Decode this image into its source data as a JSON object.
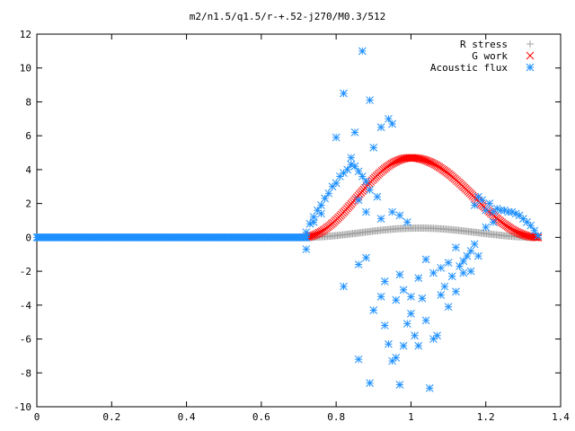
{
  "chart_data": {
    "type": "scatter",
    "title": "m2/n1.5/q1.5/r-+.52-j270/M0.3/512",
    "xlabel": "",
    "ylabel": "",
    "xlim": [
      0,
      1.4
    ],
    "ylim": [
      -10,
      12
    ],
    "x_ticks": [
      "0",
      "0.2",
      "0.4",
      "0.6",
      "0.8",
      "1",
      "1.2",
      "1.4"
    ],
    "y_ticks": [
      "-10",
      "-8",
      "-6",
      "-4",
      "-2",
      "0",
      "2",
      "4",
      "6",
      "8",
      "10",
      "12"
    ],
    "grid": false,
    "legend_position": "top-right",
    "series": [
      {
        "name": "R stress",
        "marker": "plus",
        "color": "#a0a0a0",
        "profile": "bump",
        "x_range": [
          0.71,
          1.34
        ],
        "amplitude": 0.55,
        "peak_x": 1.02,
        "n_points": 170
      },
      {
        "name": "G work",
        "marker": "cross",
        "color": "#ff0000",
        "profile": "bump",
        "x_range": [
          0.71,
          1.34
        ],
        "amplitude": 4.7,
        "peak_x": 1.0,
        "n_points": 170
      },
      {
        "name": "Acoustic flux",
        "marker": "star",
        "color": "#1e90ff",
        "baseline_x_range": [
          0.0,
          0.72
        ],
        "baseline_y": 0,
        "baseline_n_points": 260,
        "points": [
          [
            0.72,
            0.3
          ],
          [
            0.73,
            0.8
          ],
          [
            0.74,
            1.2
          ],
          [
            0.75,
            1.6
          ],
          [
            0.76,
            1.9
          ],
          [
            0.77,
            2.3
          ],
          [
            0.78,
            2.6
          ],
          [
            0.79,
            3.0
          ],
          [
            0.8,
            3.2
          ],
          [
            0.81,
            3.6
          ],
          [
            0.82,
            3.8
          ],
          [
            0.83,
            4.0
          ],
          [
            0.84,
            4.3
          ],
          [
            0.85,
            4.2
          ],
          [
            0.86,
            3.9
          ],
          [
            0.87,
            3.6
          ],
          [
            0.88,
            3.3
          ],
          [
            0.72,
            -0.7
          ],
          [
            0.72,
            0.0
          ],
          [
            0.74,
            0.9
          ],
          [
            0.76,
            1.4
          ],
          [
            0.8,
            5.9
          ],
          [
            0.82,
            8.5
          ],
          [
            0.84,
            4.7
          ],
          [
            0.85,
            6.2
          ],
          [
            0.87,
            11.0
          ],
          [
            0.89,
            8.1
          ],
          [
            0.9,
            5.3
          ],
          [
            0.92,
            6.5
          ],
          [
            0.94,
            7.0
          ],
          [
            0.95,
            6.7
          ],
          [
            0.86,
            2.2
          ],
          [
            0.88,
            1.5
          ],
          [
            0.89,
            2.8
          ],
          [
            0.91,
            2.4
          ],
          [
            0.92,
            1.1
          ],
          [
            0.95,
            1.5
          ],
          [
            0.97,
            1.3
          ],
          [
            0.99,
            0.9
          ],
          [
            0.86,
            -1.6
          ],
          [
            0.88,
            -1.2
          ],
          [
            0.82,
            -2.9
          ],
          [
            0.86,
            -7.2
          ],
          [
            0.89,
            -8.6
          ],
          [
            0.9,
            -4.3
          ],
          [
            0.92,
            -3.5
          ],
          [
            0.93,
            -5.2
          ],
          [
            0.94,
            -6.3
          ],
          [
            0.95,
            -7.3
          ],
          [
            0.96,
            -7.1
          ],
          [
            0.97,
            -8.7
          ],
          [
            0.98,
            -6.4
          ],
          [
            0.99,
            -5.1
          ],
          [
            1.0,
            -4.5
          ],
          [
            1.01,
            -5.8
          ],
          [
            1.02,
            -6.4
          ],
          [
            1.03,
            -3.6
          ],
          [
            1.04,
            -4.9
          ],
          [
            1.05,
            -8.9
          ],
          [
            1.06,
            -6.0
          ],
          [
            1.07,
            -5.8
          ],
          [
            1.08,
            -3.4
          ],
          [
            1.09,
            -2.9
          ],
          [
            1.1,
            -4.1
          ],
          [
            1.11,
            -2.3
          ],
          [
            1.12,
            -3.2
          ],
          [
            1.13,
            -1.7
          ],
          [
            1.14,
            -2.1
          ],
          [
            1.15,
            -1.1
          ],
          [
            1.16,
            -0.8
          ],
          [
            1.17,
            -0.4
          ],
          [
            0.93,
            -2.6
          ],
          [
            0.96,
            -3.7
          ],
          [
            0.97,
            -2.2
          ],
          [
            0.98,
            -3.1
          ],
          [
            1.0,
            -3.5
          ],
          [
            1.02,
            -2.4
          ],
          [
            1.04,
            -1.3
          ],
          [
            1.06,
            -2.1
          ],
          [
            1.08,
            -1.8
          ],
          [
            1.1,
            -1.5
          ],
          [
            1.12,
            -0.6
          ],
          [
            1.14,
            -1.4
          ],
          [
            1.16,
            -2.0
          ],
          [
            1.18,
            -1.1
          ],
          [
            1.19,
            2.2
          ],
          [
            1.2,
            1.6
          ],
          [
            1.21,
            2.0
          ],
          [
            1.22,
            1.5
          ],
          [
            1.23,
            1.7
          ],
          [
            1.24,
            1.6
          ],
          [
            1.25,
            1.6
          ],
          [
            1.26,
            1.5
          ],
          [
            1.27,
            1.5
          ],
          [
            1.28,
            1.4
          ],
          [
            1.29,
            1.3
          ],
          [
            1.3,
            1.1
          ],
          [
            1.31,
            0.9
          ],
          [
            1.32,
            0.7
          ],
          [
            1.33,
            0.4
          ],
          [
            1.34,
            0.1
          ],
          [
            1.18,
            2.4
          ],
          [
            1.17,
            1.9
          ],
          [
            1.22,
            0.9
          ],
          [
            1.2,
            0.6
          ]
        ]
      }
    ]
  }
}
